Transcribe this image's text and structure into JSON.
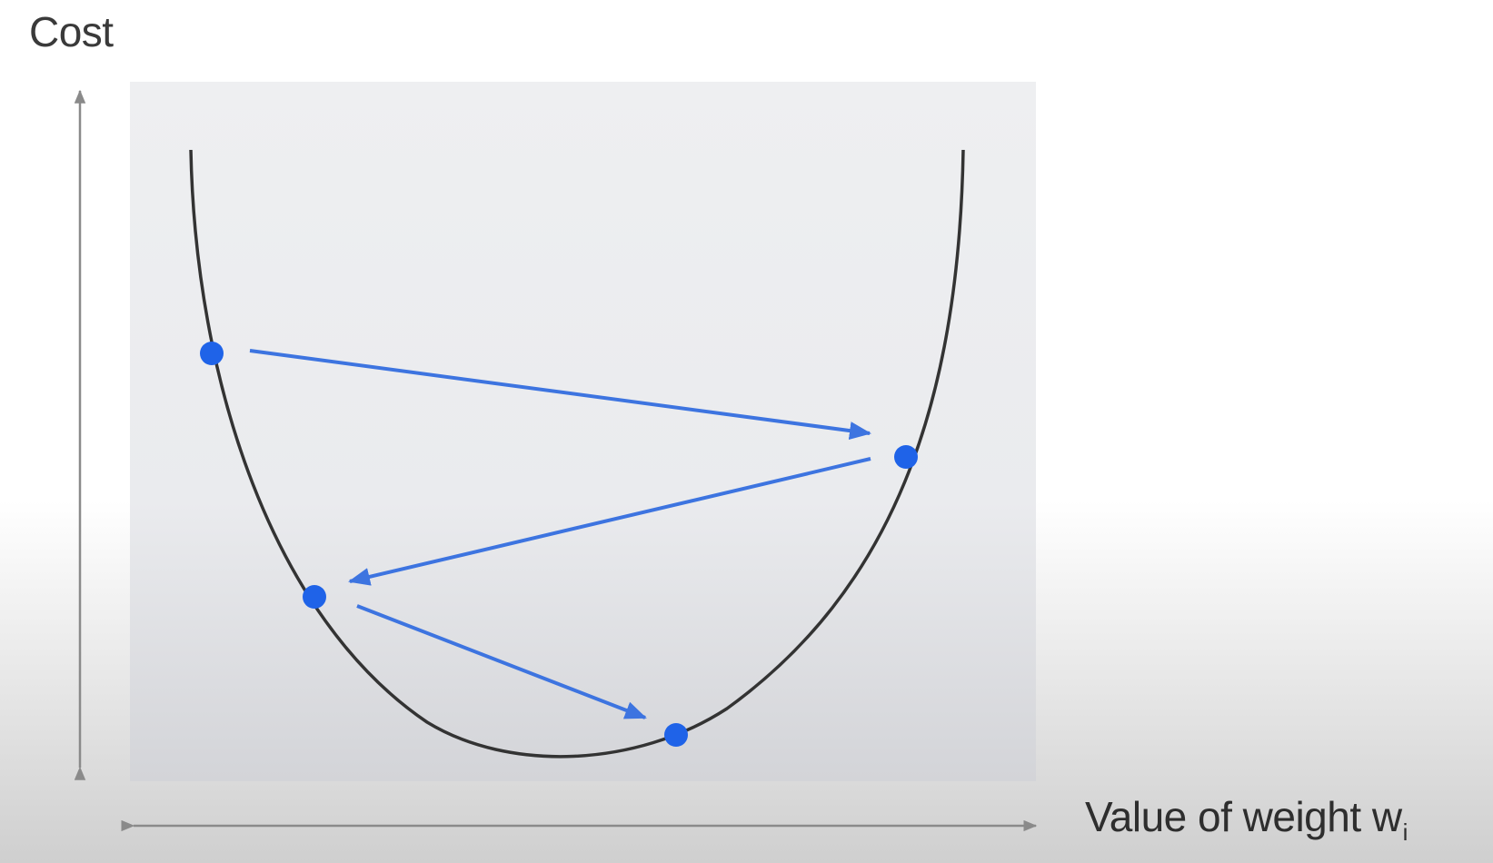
{
  "axes": {
    "y_label": "Cost",
    "x_label": "Value of weight w",
    "x_label_subscript": "i"
  },
  "colors": {
    "curve": "#333333",
    "points": "#1f63e8",
    "arrows": "#3d74e0",
    "plot_background": "#eeeff1",
    "axis_arrows": "#8a8a8a"
  },
  "diagram": {
    "type": "gradient-descent-illustration",
    "curve": "u-shaped",
    "points_count": 4,
    "arrows_count": 3
  }
}
